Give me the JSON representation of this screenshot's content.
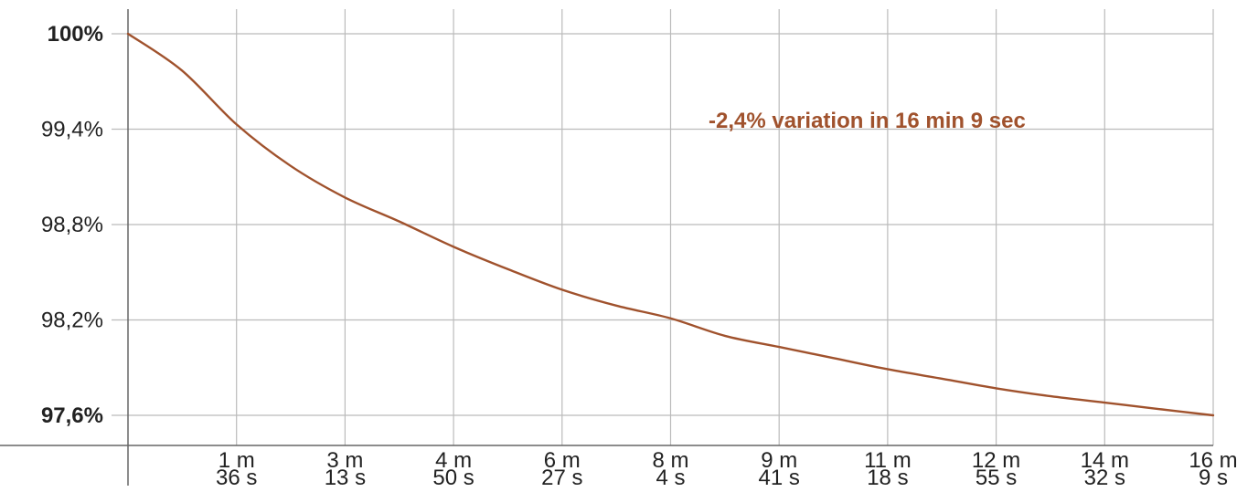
{
  "chart_data": {
    "type": "line",
    "annotation": "-2,4% variation in 16 min 9 sec",
    "y_axis": {
      "ylim": [
        97.6,
        100
      ],
      "ticks": [
        {
          "value": 100,
          "label": "100%",
          "bold": true
        },
        {
          "value": 99.4,
          "label": "99,4%",
          "bold": false
        },
        {
          "value": 98.8,
          "label": "98,8%",
          "bold": false
        },
        {
          "value": 98.2,
          "label": "98,2%",
          "bold": false
        },
        {
          "value": 97.6,
          "label": "97,6%",
          "bold": true
        }
      ]
    },
    "x_axis": {
      "unit": "seconds",
      "xlim": [
        0,
        969
      ],
      "ticks": [
        {
          "value": 96.9,
          "line1": "1 m",
          "line2": "36 s"
        },
        {
          "value": 193.8,
          "line1": "3 m",
          "line2": "13 s"
        },
        {
          "value": 290.7,
          "line1": "4 m",
          "line2": "50 s"
        },
        {
          "value": 387.6,
          "line1": "6 m",
          "line2": "27 s"
        },
        {
          "value": 484.5,
          "line1": "8 m",
          "line2": "4 s"
        },
        {
          "value": 581.4,
          "line1": "9 m",
          "line2": "41 s"
        },
        {
          "value": 678.3,
          "line1": "11 m",
          "line2": "18 s"
        },
        {
          "value": 775.2,
          "line1": "12 m",
          "line2": "55 s"
        },
        {
          "value": 872.1,
          "line1": "14 m",
          "line2": "32 s"
        },
        {
          "value": 969,
          "line1": "16 m",
          "line2": "9 s"
        }
      ]
    },
    "series": [
      {
        "color": "#a0522d",
        "x": [
          0,
          48,
          96.9,
          145,
          193.8,
          242,
          290.7,
          339,
          387.6,
          436,
          484.5,
          533,
          581.4,
          630,
          678.3,
          727,
          775.2,
          824,
          872.1,
          920,
          969
        ],
        "y": [
          100,
          99.77,
          99.43,
          99.17,
          98.97,
          98.82,
          98.66,
          98.52,
          98.39,
          98.29,
          98.21,
          98.1,
          98.03,
          97.96,
          97.89,
          97.83,
          97.77,
          97.72,
          97.68,
          97.64,
          97.6
        ]
      }
    ],
    "colors": {
      "line": "#a0522d",
      "annotation": "#a0522d",
      "grid": "#bbbbbb",
      "axis": "#666666"
    }
  }
}
